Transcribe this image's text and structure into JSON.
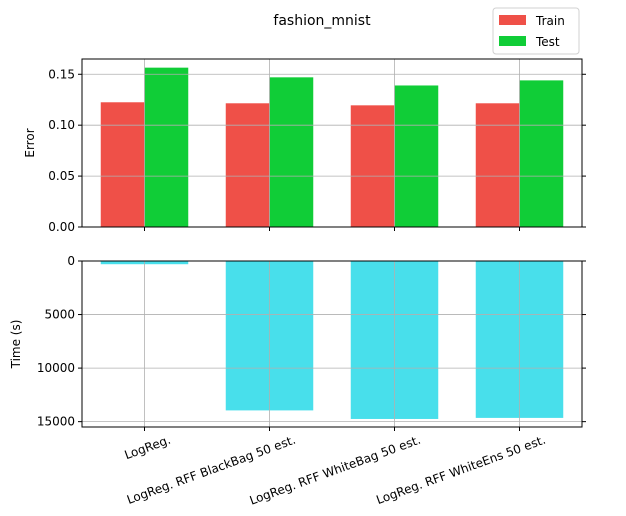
{
  "chart_data": [
    {
      "type": "bar",
      "title": "fashion_mnist",
      "ylabel": "Error",
      "xlabel": "",
      "categories": [
        "LogReg.",
        "LogReg. RFF BlackBag 50 est.",
        "LogReg. RFF WhiteBag 50 est.",
        "LogReg. RFF WhiteEns 50 est."
      ],
      "series": [
        {
          "name": "Train",
          "color": "#ef5048",
          "values": [
            0.1225,
            0.1215,
            0.1195,
            0.1215
          ]
        },
        {
          "name": "Test",
          "color": "#10cd37",
          "values": [
            0.1565,
            0.147,
            0.139,
            0.144
          ]
        }
      ],
      "ylim": [
        0,
        0.165
      ],
      "yticks": [
        0.0,
        0.05,
        0.1,
        0.15
      ],
      "ytick_labels": [
        "0.00",
        "0.05",
        "0.10",
        "0.15"
      ],
      "grid": true,
      "legend_position": "top-right"
    },
    {
      "type": "bar",
      "ylabel": "Time (s)",
      "xlabel": "",
      "categories": [
        "LogReg.",
        "LogReg. RFF BlackBag 50 est.",
        "LogReg. RFF WhiteBag 50 est.",
        "LogReg. RFF WhiteEns 50 est."
      ],
      "series": [
        {
          "color": "#48dfeb",
          "values": [
            300,
            13950,
            14750,
            14650
          ]
        }
      ],
      "ylim": [
        15500,
        0
      ],
      "y_inverted": true,
      "yticks": [
        0,
        5000,
        10000,
        15000
      ],
      "ytick_labels": [
        "0",
        "5000",
        "10000",
        "15000"
      ],
      "grid": true
    }
  ]
}
